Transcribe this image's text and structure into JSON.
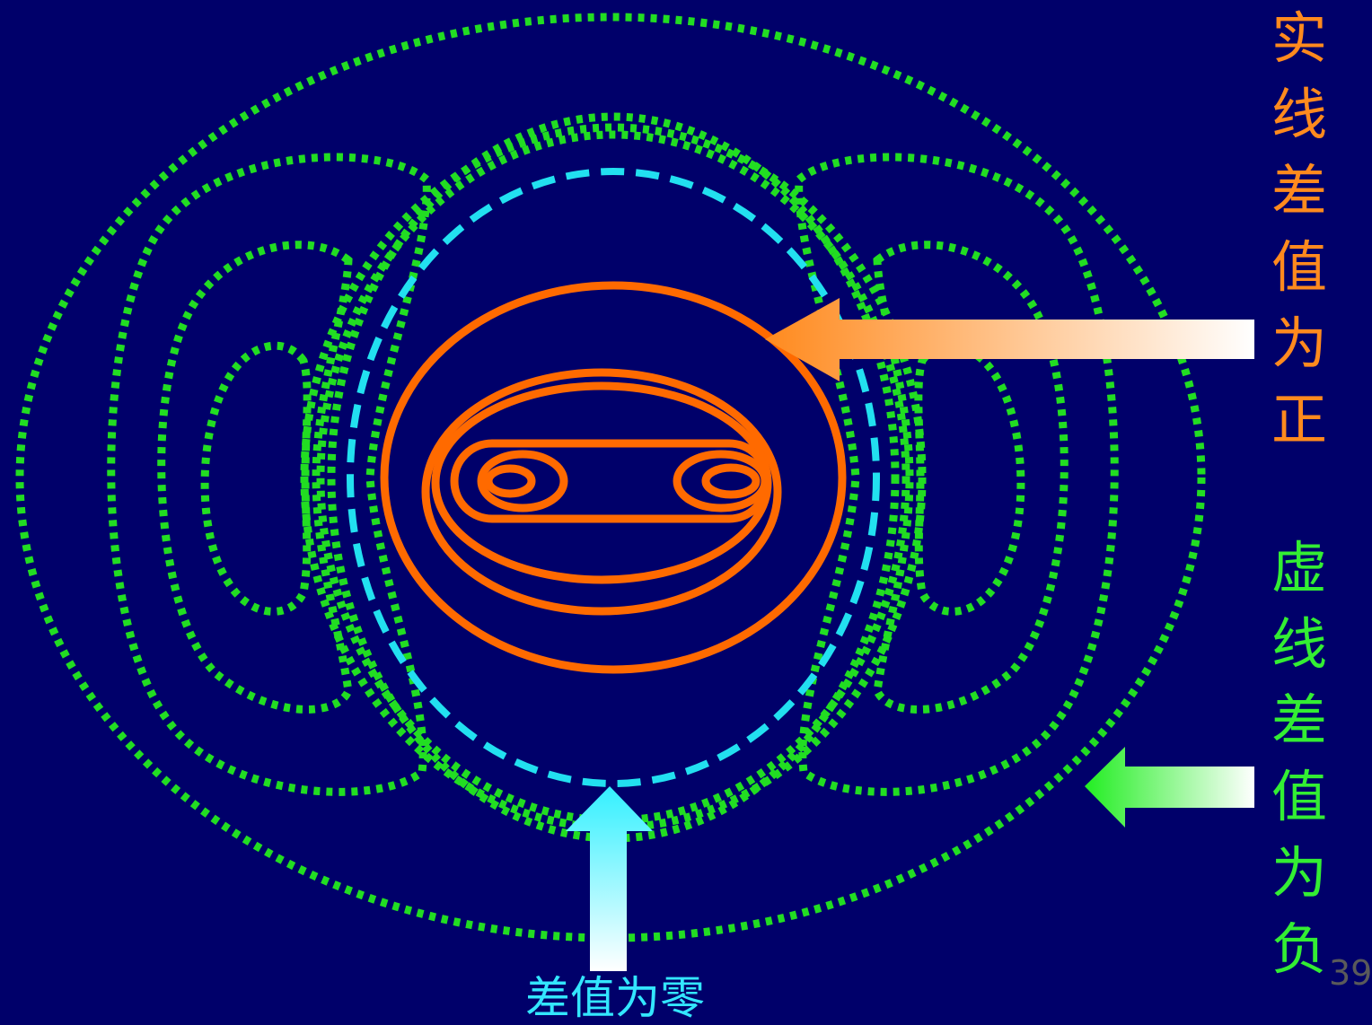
{
  "labels": {
    "solid_positive": "实\n线\n差\n值\n为\n正",
    "dashed_negative": "虚\n线\n差\n值\n为\n负",
    "zero_difference": "差值为零"
  },
  "page_number": "39",
  "colors": {
    "background": "#00006a",
    "positive_contour": "#ff6a00",
    "negative_contour": "#22dd22",
    "zero_contour": "#22e0f0",
    "positive_text": "#ff8a1e",
    "negative_text": "#33ee33",
    "zero_text": "#33e6ff"
  }
}
